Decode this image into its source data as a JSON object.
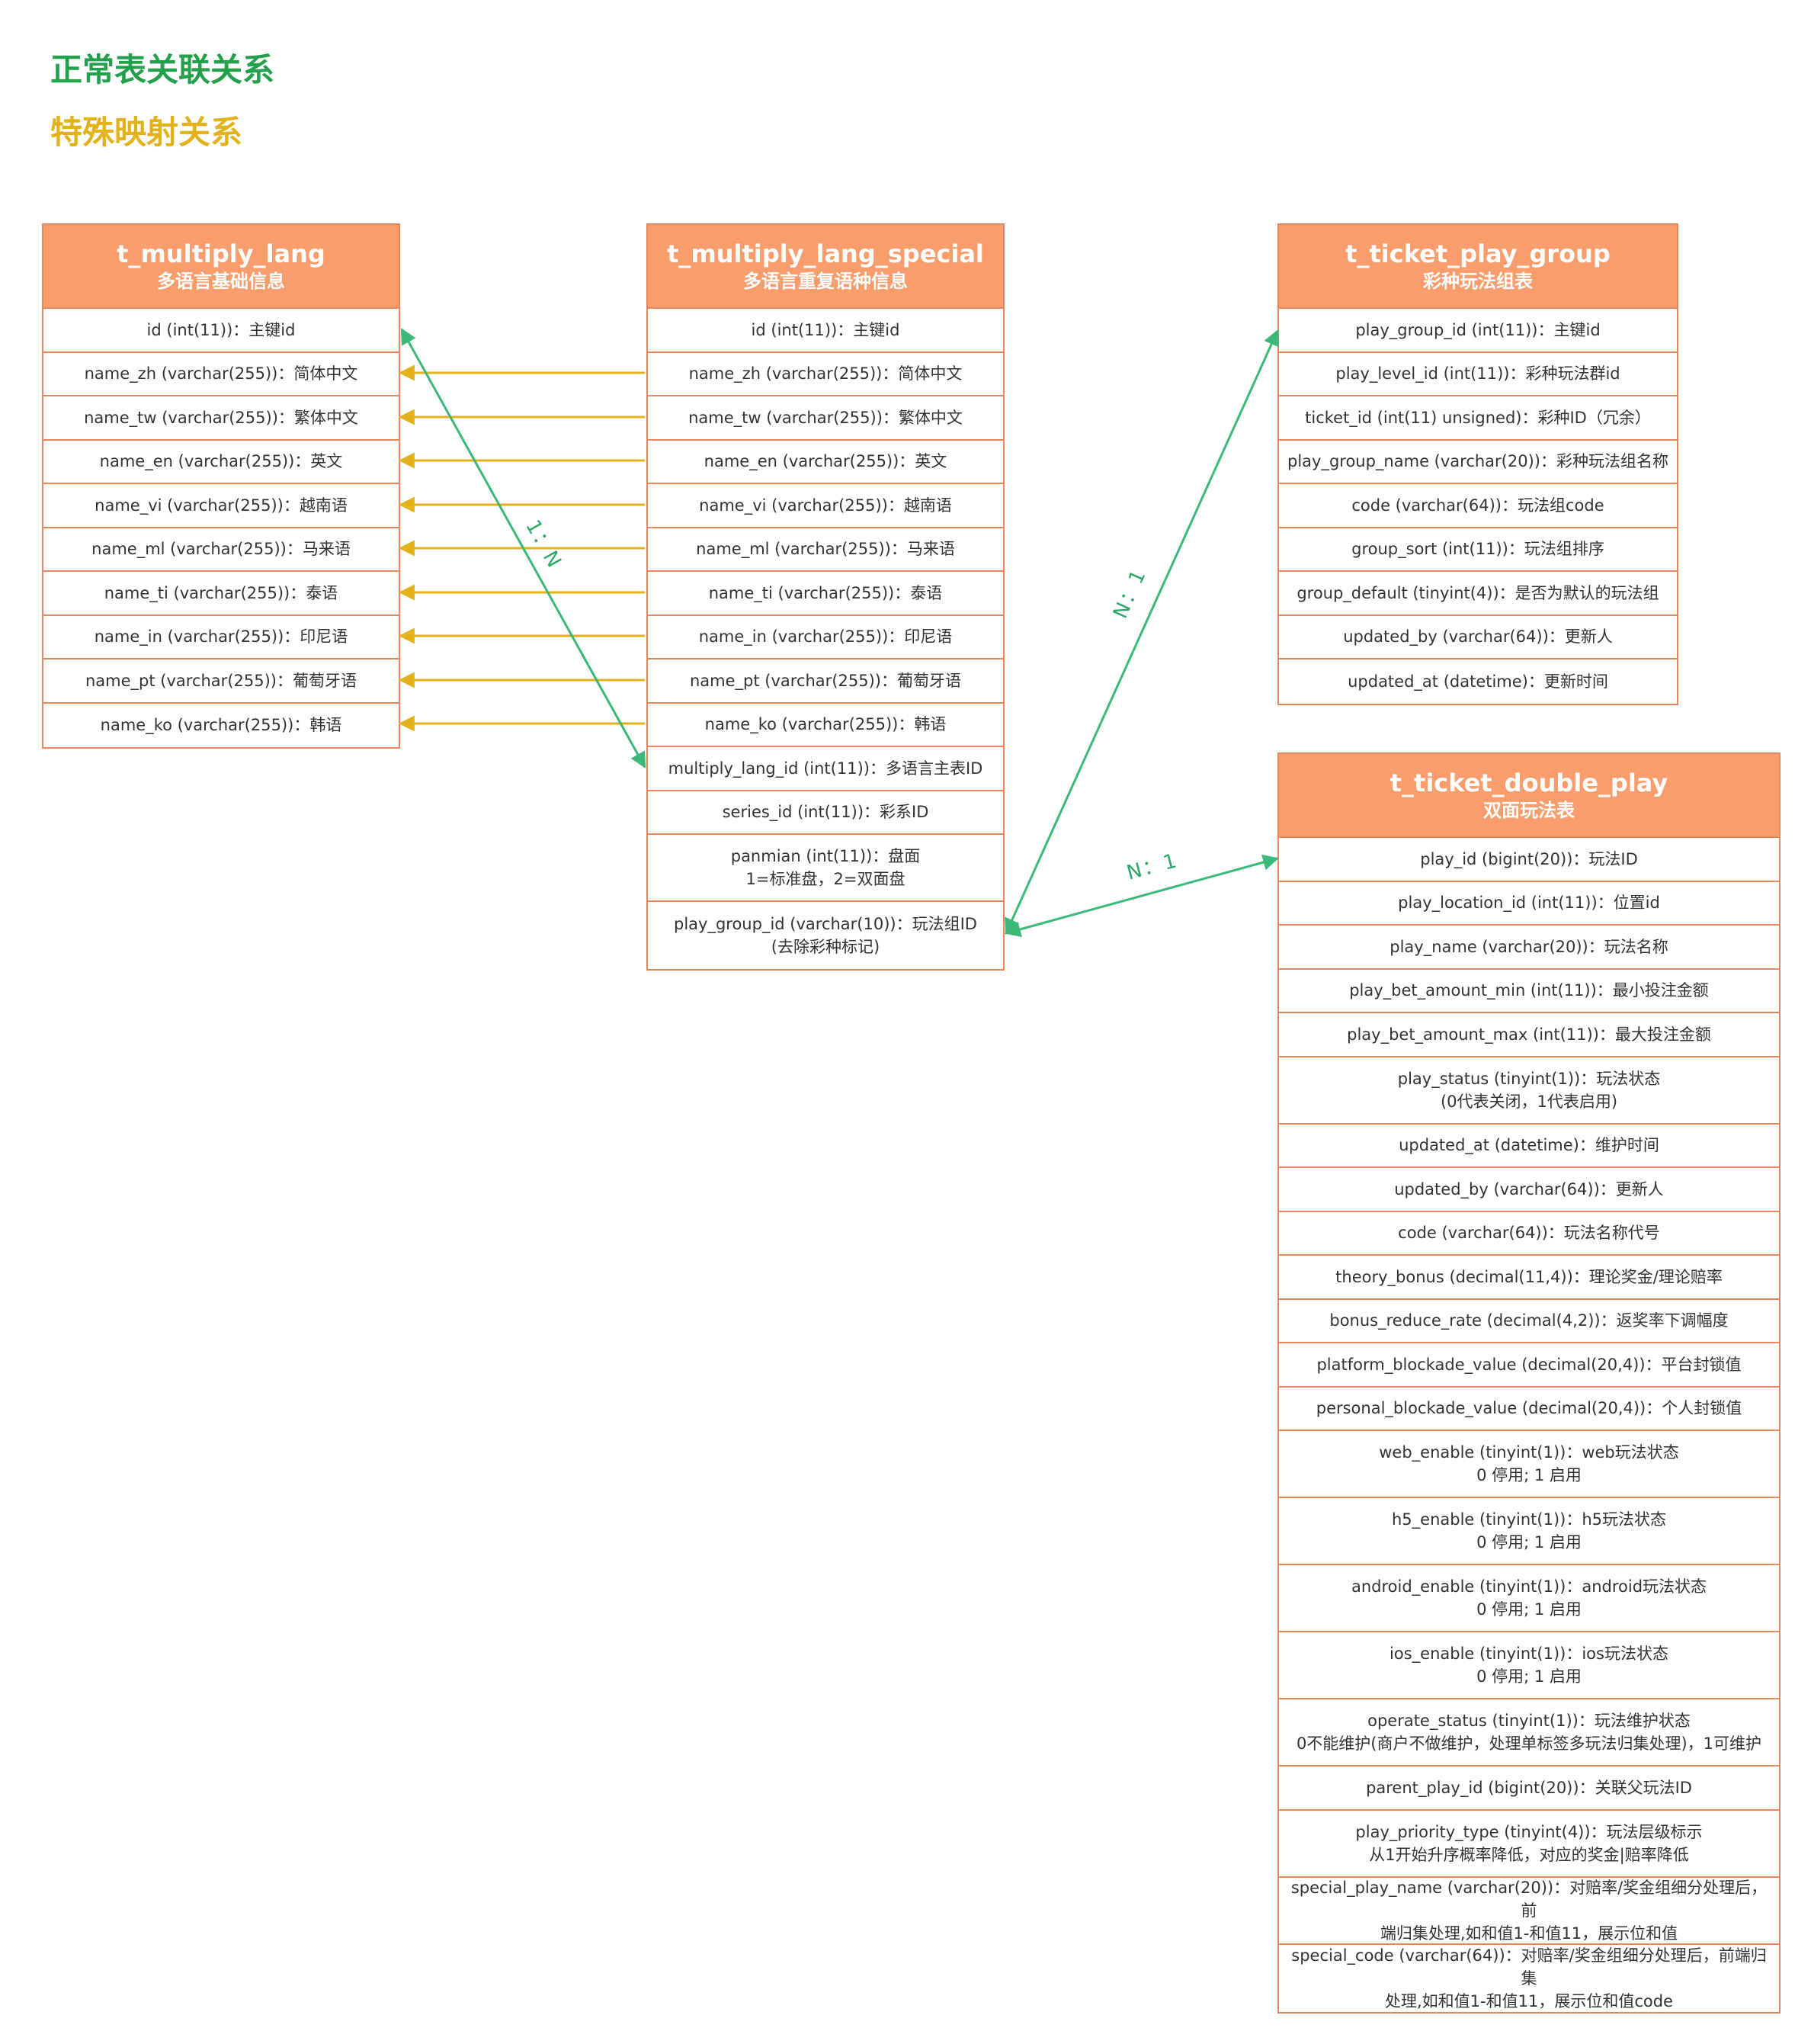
{
  "legend": {
    "normal": "正常表关联关系",
    "special": "特殊映射关系"
  },
  "colors": {
    "header_fill": "#f99d6c",
    "border": "#e8875f",
    "normal_relation": "#3cb878",
    "special_mapping": "#e3b21a"
  },
  "tables": {
    "multiply_lang": {
      "name": "t_multiply_lang",
      "subtitle": "多语言基础信息",
      "rows": [
        "id (int(11))：主键id",
        "name_zh (varchar(255))：简体中文",
        "name_tw (varchar(255))：繁体中文",
        "name_en (varchar(255))：英文",
        "name_vi (varchar(255))：越南语",
        "name_ml (varchar(255))：马来语",
        "name_ti (varchar(255))：泰语",
        "name_in (varchar(255))：印尼语",
        "name_pt (varchar(255))：葡萄牙语",
        "name_ko (varchar(255))：韩语"
      ]
    },
    "multiply_lang_special": {
      "name": "t_multiply_lang_special",
      "subtitle": "多语言重复语种信息",
      "rows": [
        "id (int(11))：主键id",
        "name_zh (varchar(255))：简体中文",
        "name_tw (varchar(255))：繁体中文",
        "name_en (varchar(255))：英文",
        "name_vi (varchar(255))：越南语",
        "name_ml (varchar(255))：马来语",
        "name_ti (varchar(255))：泰语",
        "name_in (varchar(255))：印尼语",
        "name_pt (varchar(255))：葡萄牙语",
        "name_ko (varchar(255))：韩语",
        "multiply_lang_id (int(11))：多语言主表ID",
        "series_id (int(11))：彩系ID",
        "panmian (int(11))：盘面\n1=标准盘，2=双面盘",
        "play_group_id (varchar(10))：玩法组ID\n(去除彩种标记)"
      ]
    },
    "ticket_play_group": {
      "name": "t_ticket_play_group",
      "subtitle": "彩种玩法组表",
      "rows": [
        "play_group_id (int(11))：主键id",
        "play_level_id (int(11))：彩种玩法群id",
        "ticket_id (int(11) unsigned)：彩种ID（冗余）",
        "play_group_name (varchar(20))：彩种玩法组名称",
        "code (varchar(64))：玩法组code",
        "group_sort (int(11))：玩法组排序",
        "group_default (tinyint(4))：是否为默认的玩法组",
        "updated_by (varchar(64))：更新人",
        "updated_at (datetime)：更新时间"
      ]
    },
    "ticket_double_play": {
      "name": "t_ticket_double_play",
      "subtitle": "双面玩法表",
      "rows": [
        "play_id (bigint(20))：玩法ID",
        "play_location_id (int(11))：位置id",
        "play_name (varchar(20))：玩法名称",
        "play_bet_amount_min (int(11))：最小投注金额",
        "play_bet_amount_max (int(11))：最大投注金额",
        "play_status (tinyint(1))：玩法状态\n(0代表关闭，1代表启用)",
        "updated_at (datetime)：维护时间",
        "updated_by (varchar(64))：更新人",
        "code (varchar(64))：玩法名称代号",
        "theory_bonus (decimal(11,4))：理论奖金/理论赔率",
        "bonus_reduce_rate (decimal(4,2))：返奖率下调幅度",
        "platform_blockade_value (decimal(20,4))：平台封锁值",
        "personal_blockade_value (decimal(20,4))：个人封锁值",
        "web_enable (tinyint(1))：web玩法状态\n0 停用; 1 启用",
        "h5_enable (tinyint(1))：h5玩法状态\n0 停用; 1 启用",
        "android_enable (tinyint(1))：android玩法状态\n0 停用; 1 启用",
        "ios_enable (tinyint(1))：ios玩法状态\n0 停用; 1 启用",
        "operate_status (tinyint(1))：玩法维护状态\n0不能维护(商户不做维护，处理单标签多玩法归集处理)，1可维护",
        "parent_play_id (bigint(20))：关联父玩法ID",
        "play_priority_type (tinyint(4))：玩法层级标示\n从1开始升序概率降低，对应的奖金|赔率降低",
        "special_play_name (varchar(20))：对赔率/奖金组细分处理后，前\n端归集处理,如和值1-和值11，展示位和值",
        "special_code (varchar(64))：对赔率/奖金组细分处理后，前端归集\n处理,如和值1-和值11，展示位和值code"
      ]
    }
  },
  "relations": {
    "lang_to_special": "1：N",
    "special_to_group": "N：1",
    "special_to_double": "N：1"
  }
}
